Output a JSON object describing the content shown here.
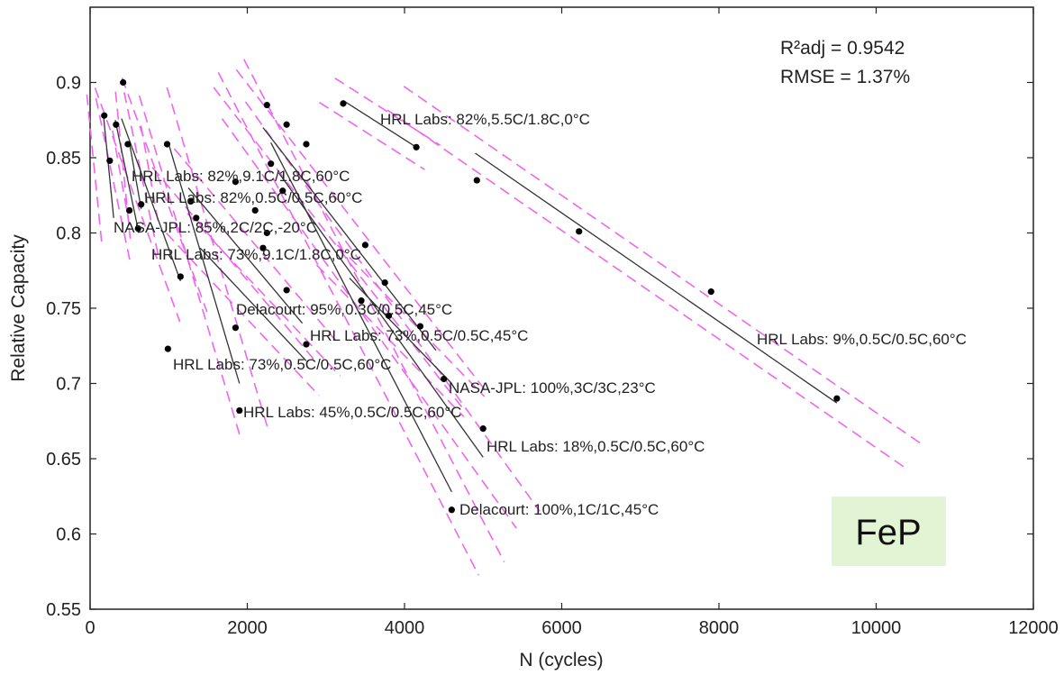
{
  "chart_data": {
    "type": "scatter",
    "title": "",
    "xlabel": "N (cycles)",
    "ylabel": "Relative Capacity",
    "xlim": [
      0,
      12000
    ],
    "ylim": [
      0.55,
      0.95
    ],
    "xticks": [
      0,
      2000,
      4000,
      6000,
      8000,
      10000,
      12000
    ],
    "yticks": [
      0.55,
      0.6,
      0.65,
      0.7,
      0.75,
      0.8,
      0.85,
      0.9
    ],
    "xtick_labels": [
      "0",
      "2000",
      "4000",
      "6000",
      "8000",
      "10000",
      "12000"
    ],
    "ytick_labels": [
      "0.55",
      "0.6",
      "0.65",
      "0.7",
      "0.75",
      "0.8",
      "0.85",
      "0.9"
    ],
    "grid": false,
    "stats": {
      "r2adj": "R²adj = 0.9542",
      "rmse": "RMSE = 1.37%"
    },
    "badge": "FeP",
    "colors": {
      "fit": "#333333",
      "bound": "#ee66ee",
      "point": "#000000",
      "badge_bg": "#e2f4d4"
    },
    "series": [
      {
        "name": "HRL Labs: 82%,5.5C/1.8C,0°C",
        "points": [
          [
            3220,
            0.886
          ],
          [
            4150,
            0.857
          ]
        ],
        "fit": [
          [
            3220,
            0.888
          ],
          [
            4150,
            0.857
          ]
        ]
      },
      {
        "name": "HRL Labs: 82%,9.1C/1.8C,60°C",
        "points": [
          [
            180,
            0.878
          ],
          [
            250,
            0.848
          ],
          [
            500,
            0.815
          ]
        ],
        "fit": [
          [
            170,
            0.878
          ],
          [
            300,
            0.81
          ]
        ]
      },
      {
        "name": "HRL Labs: 82%,0.5C/0.5C,60°C",
        "points": [
          [
            480,
            0.859
          ],
          [
            650,
            0.819
          ]
        ],
        "fit": [
          [
            500,
            0.86
          ],
          [
            650,
            0.816
          ]
        ]
      },
      {
        "name": "NASA-JPL: 85%,2C/2C,-20°C",
        "points": [
          [
            330,
            0.872
          ],
          [
            610,
            0.803
          ]
        ],
        "fit": [
          [
            320,
            0.875
          ],
          [
            620,
            0.8
          ]
        ]
      },
      {
        "name": "HRL Labs: 73%,9.1C/1.8C,0°C",
        "points": [
          [
            420,
            0.9
          ],
          [
            1150,
            0.771
          ]
        ],
        "fit": [
          [
            400,
            0.876
          ],
          [
            1150,
            0.768
          ]
        ]
      },
      {
        "name": "Delacourt: 95%,0.3C/0.5C,45°C",
        "points": [
          [
            1280,
            0.821
          ],
          [
            1850,
            0.834
          ],
          [
            2200,
            0.79
          ],
          [
            2500,
            0.762
          ]
        ],
        "fit": [
          [
            1250,
            0.83
          ],
          [
            2700,
            0.74
          ]
        ]
      },
      {
        "name": "HRL Labs: 73%,0.5C/0.5C,45°C",
        "points": [
          [
            2250,
            0.885
          ],
          [
            2500,
            0.872
          ],
          [
            2750,
            0.859
          ],
          [
            3500,
            0.792
          ],
          [
            4200,
            0.738
          ]
        ],
        "fit": [
          [
            2200,
            0.87
          ],
          [
            4400,
            0.722
          ]
        ]
      },
      {
        "name": "HRL Labs: 73%,0.5C/0.5C,60°C",
        "points": [
          [
            980,
            0.859
          ],
          [
            1350,
            0.81
          ],
          [
            1850,
            0.737
          ],
          [
            990,
            0.723
          ]
        ],
        "fit": [
          [
            1000,
            0.859
          ],
          [
            1900,
            0.7
          ]
        ]
      },
      {
        "name": "NASA-JPL: 100%,3C/3C,23°C",
        "points": [
          [
            3450,
            0.755
          ],
          [
            3750,
            0.767
          ],
          [
            4500,
            0.703
          ]
        ],
        "fit": [
          [
            3300,
            0.77
          ],
          [
            4600,
            0.7
          ]
        ]
      },
      {
        "name": "HRL Labs: 45%,0.5C/0.5C,60°C",
        "points": [
          [
            2100,
            0.815
          ],
          [
            2300,
            0.846
          ],
          [
            2750,
            0.726
          ],
          [
            1900,
            0.682
          ]
        ],
        "fit": [
          [
            1400,
            0.79
          ],
          [
            2750,
            0.715
          ]
        ]
      },
      {
        "name": "HRL Labs: 18%,0.5C/0.5C,60°C",
        "points": [
          [
            2450,
            0.828
          ],
          [
            3800,
            0.745
          ],
          [
            5000,
            0.67
          ]
        ],
        "fit": [
          [
            2400,
            0.84
          ],
          [
            5000,
            0.651
          ]
        ]
      },
      {
        "name": "Delacourt: 100%,1C/1C,45°C",
        "points": [
          [
            2250,
            0.8
          ],
          [
            4600,
            0.616
          ]
        ],
        "fit": [
          [
            2300,
            0.86
          ],
          [
            4600,
            0.628
          ]
        ]
      },
      {
        "name": "HRL Labs: 9%,0.5C/0.5C,60°C",
        "points": [
          [
            4920,
            0.835
          ],
          [
            6220,
            0.801
          ],
          [
            7900,
            0.761
          ],
          [
            9500,
            0.69
          ]
        ],
        "fit": [
          [
            4900,
            0.853
          ],
          [
            9500,
            0.687
          ]
        ]
      }
    ]
  }
}
